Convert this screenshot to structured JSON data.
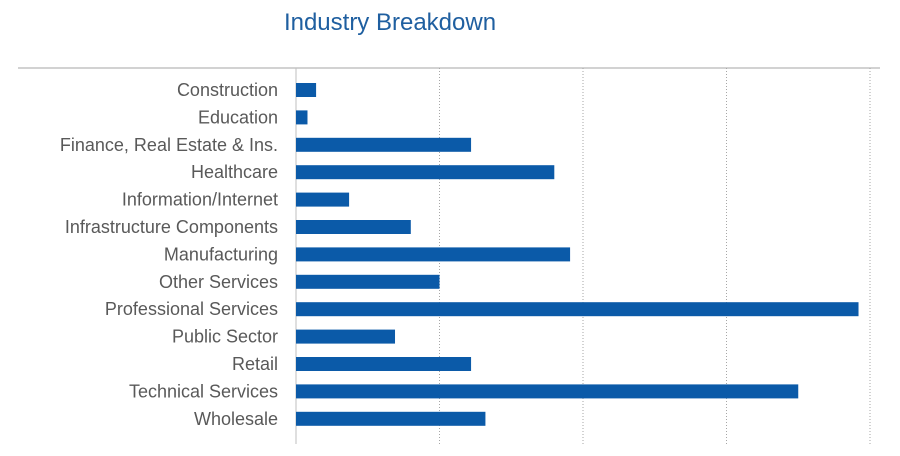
{
  "chart_data": {
    "type": "bar",
    "orientation": "horizontal",
    "title": "Industry Breakdown",
    "categories": [
      "Construction",
      "Education",
      "Finance, Real Estate & Ins.",
      "Healthcare",
      "Information/Internet",
      "Infrastructure Components",
      "Manufacturing",
      "Other Services",
      "Professional Services",
      "Public Sector",
      "Retail",
      "Technical Services",
      "Wholesale"
    ],
    "values": [
      0.14,
      0.08,
      1.22,
      1.8,
      0.37,
      0.8,
      1.91,
      1.0,
      3.92,
      0.69,
      1.22,
      3.5,
      1.32
    ],
    "xlim": [
      0,
      4
    ],
    "x_gridlines": [
      1,
      2,
      3,
      4
    ],
    "grid": true,
    "grid_style": "dotted vertical",
    "x_tick_labels_shown": false,
    "bar_color": "#0b5aa8",
    "title_color": "#1f5fa0",
    "label_color": "#595959"
  }
}
